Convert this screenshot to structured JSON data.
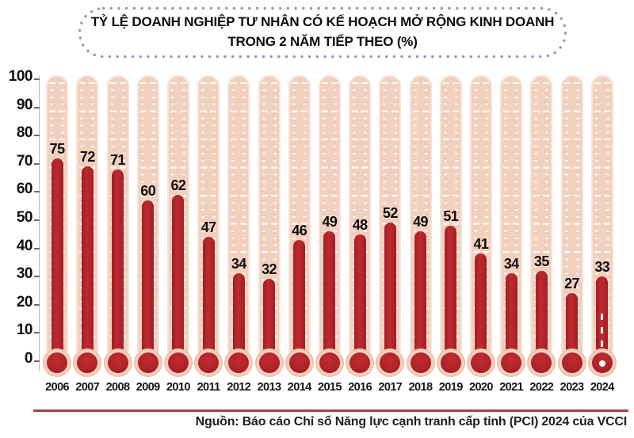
{
  "title_box": {
    "line1": "TỶ LỆ DOANH NGHIỆP TƯ NHÂN CÓ KẾ HOẠCH MỞ RỘNG KINH DOANH",
    "line2": "TRONG 2 NĂM TIẾP THEO (%)"
  },
  "chart_data": {
    "type": "bar",
    "style": "thermometer-infographic",
    "title": "TỶ LỆ DOANH NGHIỆP TƯ NHÂN CÓ KẾ HOẠCH MỞ RỘNG KINH DOANH TRONG 2 NĂM TIẾP THEO (%)",
    "categories": [
      "2006",
      "2007",
      "2008",
      "2009",
      "2010",
      "2011",
      "2012",
      "2013",
      "2014",
      "2015",
      "2016",
      "2017",
      "2018",
      "2019",
      "2020",
      "2021",
      "2022",
      "2023",
      "2024"
    ],
    "values": [
      75,
      72,
      71,
      60,
      62,
      47,
      34,
      32,
      46,
      49,
      48,
      52,
      49,
      51,
      41,
      34,
      35,
      27,
      33
    ],
    "xlabel": "",
    "ylabel": "",
    "ylim": [
      0,
      100
    ],
    "yticks": [
      0,
      10,
      20,
      30,
      40,
      50,
      60,
      70,
      80,
      90,
      100
    ],
    "grid": false,
    "legend": false,
    "data_labels_shown": true,
    "highlighted_category": "2024"
  },
  "colors": {
    "bar": "#b2232a",
    "tube": "#f2d0be",
    "title_border_dots": "#9598bb",
    "divider_line": "#a8423f",
    "text": "#141414"
  },
  "footer": {
    "source": "Nguồn: Báo cáo Chỉ số Năng lực cạnh tranh cấp tỉnh (PCI) 2024 của VCCI"
  }
}
